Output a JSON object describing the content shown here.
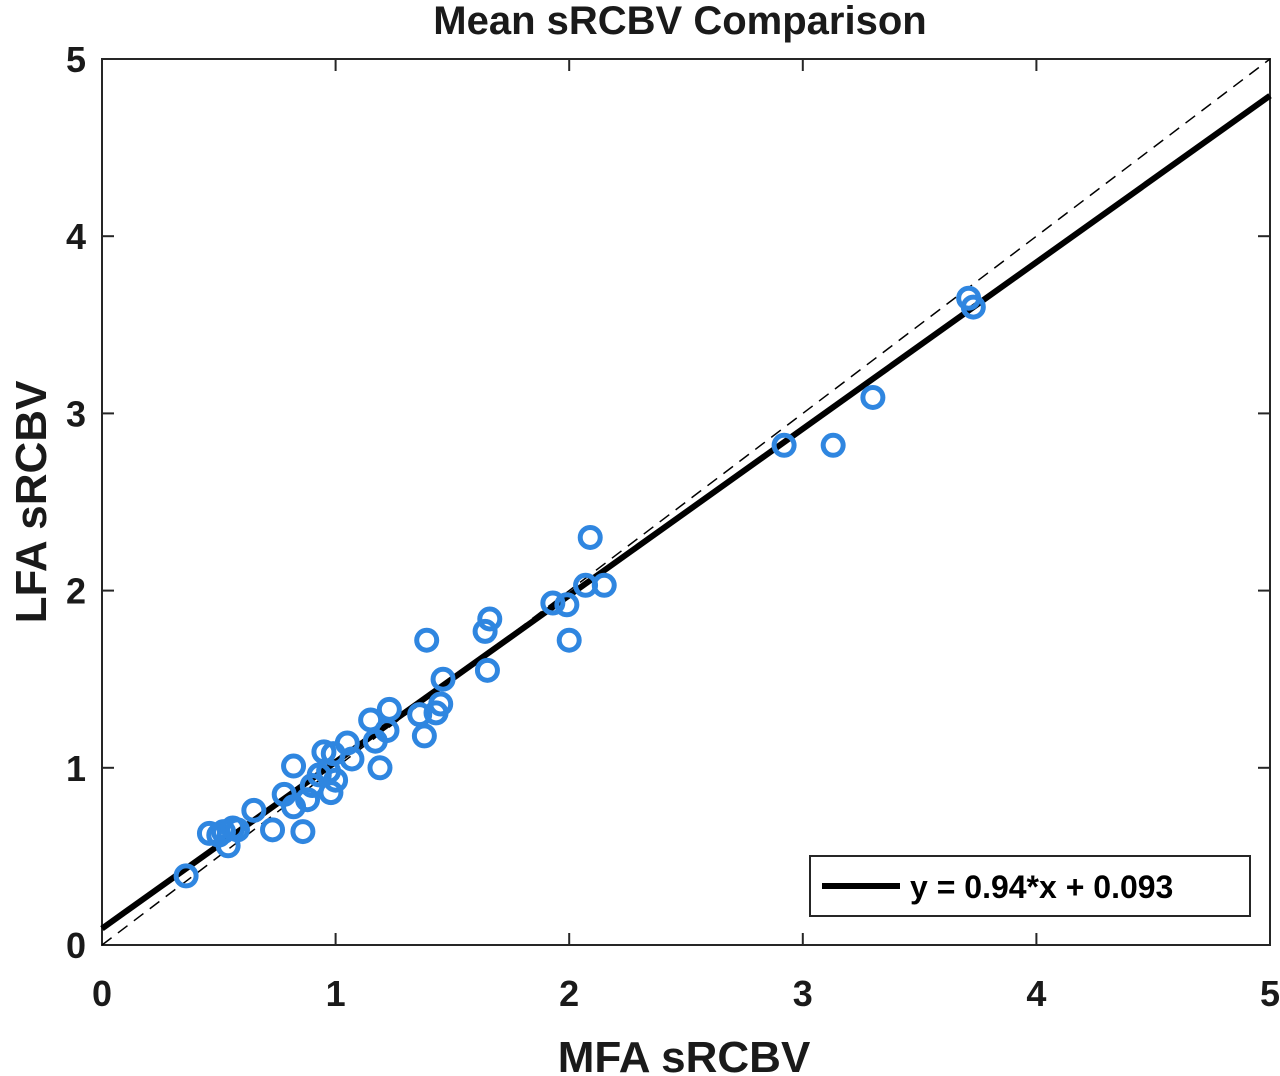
{
  "chart_data": {
    "type": "scatter",
    "title": "Mean sRCBV Comparison",
    "xlabel": "MFA sRCBV",
    "ylabel": "LFA sRCBV",
    "xlim": [
      0,
      5
    ],
    "ylim": [
      0,
      5
    ],
    "xticks": [
      "0",
      "1",
      "2",
      "3",
      "4",
      "5"
    ],
    "yticks": [
      "0",
      "1",
      "2",
      "3",
      "4",
      "5"
    ],
    "grid": false,
    "legend_position": "bottom-right",
    "marker_color": "#2f86e0",
    "points": [
      [
        0.36,
        0.39
      ],
      [
        0.46,
        0.63
      ],
      [
        0.5,
        0.62
      ],
      [
        0.52,
        0.64
      ],
      [
        0.54,
        0.56
      ],
      [
        0.56,
        0.66
      ],
      [
        0.58,
        0.65
      ],
      [
        0.65,
        0.76
      ],
      [
        0.73,
        0.65
      ],
      [
        0.78,
        0.85
      ],
      [
        0.82,
        1.01
      ],
      [
        0.82,
        0.78
      ],
      [
        0.86,
        0.64
      ],
      [
        0.88,
        0.82
      ],
      [
        0.9,
        0.9
      ],
      [
        0.93,
        0.96
      ],
      [
        0.95,
        1.09
      ],
      [
        0.97,
        0.98
      ],
      [
        0.98,
        0.86
      ],
      [
        0.99,
        1.08
      ],
      [
        1.0,
        0.93
      ],
      [
        1.05,
        1.14
      ],
      [
        1.07,
        1.05
      ],
      [
        1.15,
        1.27
      ],
      [
        1.17,
        1.15
      ],
      [
        1.19,
        1.0
      ],
      [
        1.22,
        1.21
      ],
      [
        1.23,
        1.33
      ],
      [
        1.36,
        1.3
      ],
      [
        1.38,
        1.18
      ],
      [
        1.39,
        1.72
      ],
      [
        1.43,
        1.31
      ],
      [
        1.45,
        1.36
      ],
      [
        1.46,
        1.5
      ],
      [
        1.64,
        1.77
      ],
      [
        1.65,
        1.55
      ],
      [
        1.66,
        1.84
      ],
      [
        1.93,
        1.93
      ],
      [
        1.99,
        1.92
      ],
      [
        2.0,
        1.72
      ],
      [
        2.07,
        2.03
      ],
      [
        2.09,
        2.3
      ],
      [
        2.15,
        2.03
      ],
      [
        2.92,
        2.82
      ],
      [
        3.13,
        2.82
      ],
      [
        3.3,
        3.09
      ],
      [
        3.71,
        3.65
      ],
      [
        3.73,
        3.6
      ]
    ],
    "series": [
      {
        "name": "y = 0.94*x + 0.093",
        "type": "line",
        "slope": 0.94,
        "intercept": 0.093,
        "color": "#000000"
      },
      {
        "type": "dashed-identity",
        "slope": 1,
        "intercept": 0,
        "color": "#000000"
      }
    ]
  }
}
